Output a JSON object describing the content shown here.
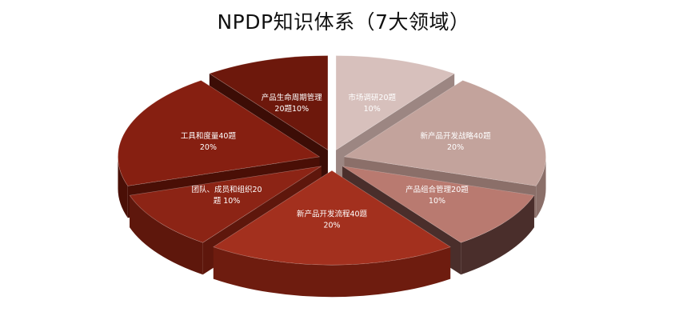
{
  "chart_data": {
    "type": "pie",
    "title": "NPDP知识体系（7大领域）",
    "style": "3d-exploded",
    "slices": [
      {
        "name": "市场调研",
        "questions": 20,
        "percent": 10,
        "label_lines": [
          "市场调研20题",
          "10%"
        ],
        "top_color": "#d7c0bc",
        "side_color": "#9c8682",
        "label_color": "#ffffff"
      },
      {
        "name": "新产品开发战略",
        "questions": 40,
        "percent": 20,
        "label_lines": [
          "新产品开发战略40题",
          "20%"
        ],
        "top_color": "#c3a39c",
        "side_color": "#8b6f69",
        "label_color": "#ffffff"
      },
      {
        "name": "产品组合管理",
        "questions": 20,
        "percent": 10,
        "label_lines": [
          "产品组合管理20题",
          "10%"
        ],
        "top_color": "#b97a70",
        "side_color": "#4a2e2b",
        "label_color": "#ffffff"
      },
      {
        "name": "新产品开发流程",
        "questions": 40,
        "percent": 20,
        "label_lines": [
          "新产品开发流程40题",
          "20%"
        ],
        "top_color": "#a3301e",
        "side_color": "#6e1c0f",
        "label_color": "#ffffff"
      },
      {
        "name": "团队、成员和组织",
        "questions": 20,
        "percent": 10,
        "label_lines": [
          "团队、成员和组织20",
          "题 10%"
        ],
        "top_color": "#8c2415",
        "side_color": "#5e170c",
        "label_color": "#ffffff"
      },
      {
        "name": "工具和度量",
        "questions": 40,
        "percent": 20,
        "label_lines": [
          "工具和度量40题",
          "20%"
        ],
        "top_color": "#861f11",
        "side_color": "#4a0f06",
        "label_color": "#ffffff"
      },
      {
        "name": "产品生命周期管理",
        "questions": 20,
        "percent": 10,
        "label_lines": [
          "产品生命周期管理",
          "20题10%"
        ],
        "top_color": "#6d180c",
        "side_color": "#3c0d06",
        "label_color": "#ffffff"
      }
    ]
  }
}
